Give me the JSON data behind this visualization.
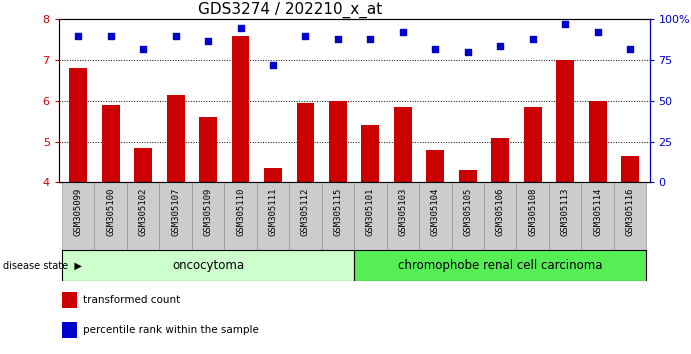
{
  "title": "GDS3274 / 202210_x_at",
  "samples": [
    "GSM305099",
    "GSM305100",
    "GSM305102",
    "GSM305107",
    "GSM305109",
    "GSM305110",
    "GSM305111",
    "GSM305112",
    "GSM305115",
    "GSM305101",
    "GSM305103",
    "GSM305104",
    "GSM305105",
    "GSM305106",
    "GSM305108",
    "GSM305113",
    "GSM305114",
    "GSM305116"
  ],
  "bar_values": [
    6.8,
    5.9,
    4.85,
    6.15,
    5.6,
    7.6,
    4.35,
    5.95,
    6.0,
    5.4,
    5.85,
    4.8,
    4.3,
    5.1,
    5.85,
    7.0,
    6.0,
    4.65
  ],
  "dot_percentiles": [
    90,
    90,
    82,
    90,
    87,
    95,
    72,
    90,
    88,
    88,
    92,
    82,
    80,
    84,
    88,
    97,
    92,
    82
  ],
  "ylim_left": [
    4,
    8
  ],
  "ylim_right": [
    0,
    100
  ],
  "yticks_left": [
    4,
    5,
    6,
    7,
    8
  ],
  "yticks_right": [
    0,
    25,
    50,
    75,
    100
  ],
  "ytick_right_labels": [
    "0",
    "25",
    "50",
    "75",
    "100%"
  ],
  "bar_color": "#cc0000",
  "dot_color": "#0000cc",
  "group1_label": "oncocytoma",
  "group2_label": "chromophobe renal cell carcinoma",
  "group1_count": 9,
  "group2_count": 9,
  "group1_color": "#ccffcc",
  "group2_color": "#55ee55",
  "disease_state_label": "disease state",
  "legend_bar_label": "transformed count",
  "legend_dot_label": "percentile rank within the sample",
  "title_fontsize": 11,
  "tick_fontsize": 6.5,
  "group_fontsize": 8.5,
  "legend_fontsize": 7.5
}
